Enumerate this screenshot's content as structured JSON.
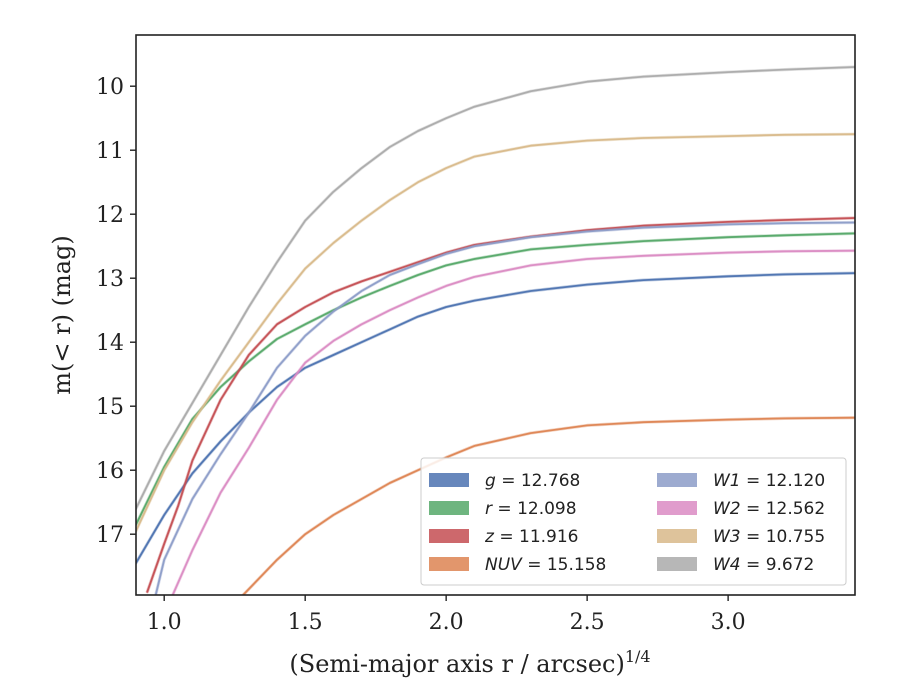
{
  "chart_data": {
    "type": "line",
    "xlabel": "(Semi-major axis r / arcsec)",
    "xlabel_sup": "1/4",
    "ylabel": "m(< r) (mag)",
    "xlim": [
      0.9,
      3.45
    ],
    "ylim": [
      17.95,
      9.2
    ],
    "y_inverted": true,
    "x_ticks": [
      {
        "value": 1.0,
        "label": "1.0"
      },
      {
        "value": 1.5,
        "label": "1.5"
      },
      {
        "value": 2.0,
        "label": "2.0"
      },
      {
        "value": 2.5,
        "label": "2.5"
      },
      {
        "value": 3.0,
        "label": "3.0"
      }
    ],
    "y_ticks": [
      {
        "value": 10,
        "label": "10"
      },
      {
        "value": 11,
        "label": "11"
      },
      {
        "value": 12,
        "label": "12"
      },
      {
        "value": 13,
        "label": "13"
      },
      {
        "value": 14,
        "label": "14"
      },
      {
        "value": 15,
        "label": "15"
      },
      {
        "value": 16,
        "label": "16"
      },
      {
        "value": 17,
        "label": "17"
      }
    ],
    "legend_position": "lower-right",
    "series": [
      {
        "name": "g",
        "legend_value": "12.768",
        "legend_label": "g = 12.768",
        "color": "#4c72b0",
        "x": [
          0.9,
          1.0,
          1.1,
          1.2,
          1.3,
          1.4,
          1.5,
          1.6,
          1.7,
          1.8,
          1.9,
          2.0,
          2.1,
          2.3,
          2.5,
          2.7,
          3.0,
          3.2,
          3.45
        ],
        "y": [
          17.45,
          16.7,
          16.05,
          15.55,
          15.1,
          14.7,
          14.4,
          14.2,
          14.0,
          13.8,
          13.6,
          13.45,
          13.35,
          13.2,
          13.1,
          13.03,
          12.97,
          12.94,
          12.92
        ]
      },
      {
        "name": "r",
        "legend_value": "12.098",
        "legend_label": "r = 12.098",
        "color": "#55a868",
        "x": [
          0.9,
          1.0,
          1.1,
          1.2,
          1.3,
          1.4,
          1.5,
          1.6,
          1.7,
          1.8,
          1.9,
          2.0,
          2.1,
          2.3,
          2.5,
          2.7,
          3.0,
          3.2,
          3.45
        ],
        "y": [
          16.85,
          15.95,
          15.2,
          14.7,
          14.3,
          13.95,
          13.72,
          13.5,
          13.3,
          13.12,
          12.95,
          12.8,
          12.7,
          12.55,
          12.48,
          12.42,
          12.36,
          12.33,
          12.3
        ]
      },
      {
        "name": "z",
        "legend_value": "11.916",
        "legend_label": "z = 11.916",
        "color": "#c44e52",
        "x": [
          0.94,
          1.0,
          1.05,
          1.1,
          1.2,
          1.3,
          1.4,
          1.5,
          1.6,
          1.7,
          1.8,
          1.9,
          2.0,
          2.1,
          2.3,
          2.5,
          2.7,
          3.0,
          3.2,
          3.45
        ],
        "y": [
          17.9,
          17.15,
          16.55,
          15.85,
          14.9,
          14.2,
          13.72,
          13.45,
          13.22,
          13.05,
          12.9,
          12.75,
          12.6,
          12.48,
          12.35,
          12.25,
          12.18,
          12.12,
          12.09,
          12.06
        ]
      },
      {
        "name": "NUV",
        "legend_value": "15.158",
        "legend_label": "NUV = 15.158",
        "color": "#dd8452",
        "x": [
          1.28,
          1.4,
          1.5,
          1.6,
          1.7,
          1.8,
          1.9,
          2.0,
          2.1,
          2.3,
          2.5,
          2.7,
          3.0,
          3.2,
          3.45
        ],
        "y": [
          17.95,
          17.4,
          17.0,
          16.7,
          16.45,
          16.2,
          16.0,
          15.8,
          15.62,
          15.42,
          15.3,
          15.25,
          15.21,
          15.19,
          15.18
        ]
      },
      {
        "name": "W1",
        "legend_value": "12.120",
        "legend_label": "W1 = 12.120",
        "color": "#8c9cc8",
        "x": [
          0.97,
          1.0,
          1.1,
          1.2,
          1.3,
          1.4,
          1.5,
          1.6,
          1.7,
          1.8,
          1.9,
          2.0,
          2.1,
          2.3,
          2.5,
          2.7,
          3.0,
          3.2,
          3.45
        ],
        "y": [
          17.95,
          17.4,
          16.45,
          15.75,
          15.1,
          14.4,
          13.9,
          13.52,
          13.2,
          12.95,
          12.78,
          12.62,
          12.5,
          12.36,
          12.27,
          12.21,
          12.16,
          12.14,
          12.13
        ]
      },
      {
        "name": "W2",
        "legend_value": "12.562",
        "legend_label": "W2 = 12.562",
        "color": "#da8bc3",
        "x": [
          1.03,
          1.1,
          1.2,
          1.3,
          1.4,
          1.5,
          1.6,
          1.7,
          1.8,
          1.9,
          2.0,
          2.1,
          2.3,
          2.5,
          2.7,
          3.0,
          3.2,
          3.45
        ],
        "y": [
          17.95,
          17.25,
          16.35,
          15.65,
          14.9,
          14.32,
          13.98,
          13.72,
          13.5,
          13.3,
          13.12,
          12.98,
          12.8,
          12.7,
          12.65,
          12.6,
          12.58,
          12.57
        ]
      },
      {
        "name": "W3",
        "legend_value": "10.755",
        "legend_label": "W3 = 10.755",
        "color": "#d8b98a",
        "x": [
          0.9,
          1.0,
          1.1,
          1.2,
          1.3,
          1.4,
          1.5,
          1.6,
          1.7,
          1.8,
          1.9,
          2.0,
          2.1,
          2.3,
          2.5,
          2.7,
          3.0,
          3.2,
          3.45
        ],
        "y": [
          16.95,
          16.0,
          15.25,
          14.6,
          14.0,
          13.4,
          12.85,
          12.45,
          12.1,
          11.78,
          11.5,
          11.28,
          11.1,
          10.93,
          10.85,
          10.81,
          10.78,
          10.76,
          10.75
        ]
      },
      {
        "name": "W4",
        "legend_value": "9.672",
        "legend_label": "W4 = 9.672",
        "color": "#aaaaaa",
        "x": [
          0.9,
          1.0,
          1.1,
          1.2,
          1.3,
          1.4,
          1.5,
          1.6,
          1.7,
          1.8,
          1.9,
          2.0,
          2.1,
          2.3,
          2.5,
          2.7,
          3.0,
          3.2,
          3.45
        ],
        "y": [
          16.6,
          15.7,
          14.95,
          14.2,
          13.45,
          12.75,
          12.1,
          11.65,
          11.28,
          10.95,
          10.7,
          10.5,
          10.32,
          10.08,
          9.93,
          9.85,
          9.78,
          9.74,
          9.7
        ]
      }
    ]
  }
}
